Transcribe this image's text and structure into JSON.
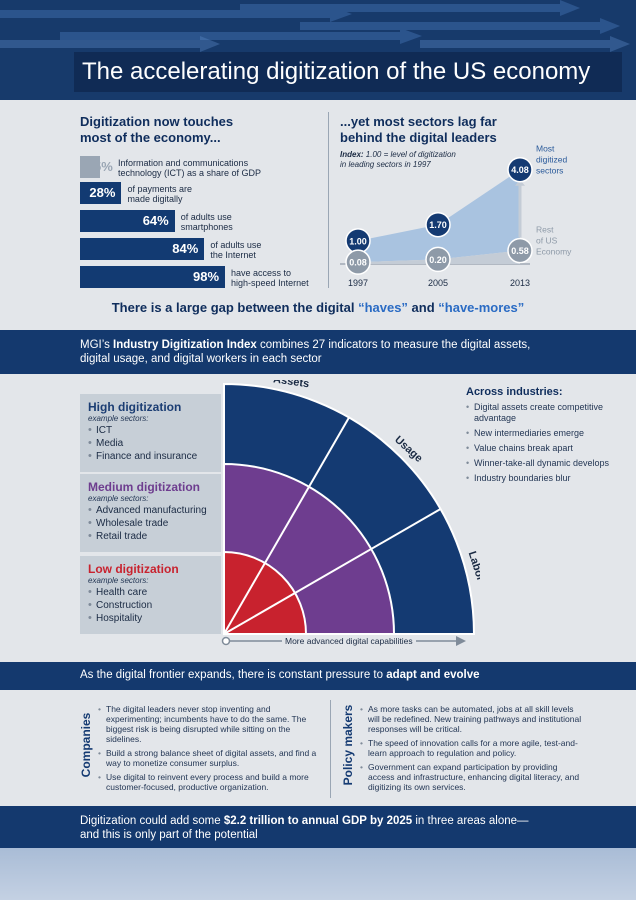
{
  "header": {
    "title": "The accelerating digitization of the US economy",
    "colors": {
      "band": "#173a6b",
      "title_bg": "#102b55"
    }
  },
  "left_panel": {
    "heading_line1": "Digitization now touches",
    "heading_line2": "most of the economy...",
    "items": [
      {
        "value": "5%",
        "pct": 5,
        "desc_line1": "Information and communications",
        "desc_line2": "technology (ICT) as a share of GDP"
      },
      {
        "value": "28%",
        "pct": 28,
        "desc_line1": "of payments are",
        "desc_line2": "made digitally"
      },
      {
        "value": "64%",
        "pct": 64,
        "desc_line1": "of adults use",
        "desc_line2": "smartphones"
      },
      {
        "value": "84%",
        "pct": 84,
        "desc_line1": "of adults use",
        "desc_line2": "the Internet"
      },
      {
        "value": "98%",
        "pct": 98,
        "desc_line1": "have access to",
        "desc_line2": "high-speed Internet"
      }
    ]
  },
  "chart_data": {
    "type": "area",
    "title": "...yet most sectors lag far behind the digital leaders",
    "index_label": "Index:",
    "index_note_line1": "1.00 = level of digitization",
    "index_note_line2": "in leading sectors in 1997",
    "categories": [
      "1997",
      "2005",
      "2013"
    ],
    "series": [
      {
        "name": "Most digitized sectors",
        "name_lines": [
          "Most",
          "digitized",
          "sectors"
        ],
        "values": [
          1.0,
          1.7,
          4.08
        ],
        "labels": [
          "1.00",
          "1.70",
          "4.08"
        ],
        "color": "#143a72"
      },
      {
        "name": "Rest of US Economy",
        "name_lines": [
          "Rest",
          "of US",
          "Economy"
        ],
        "values": [
          0.08,
          0.2,
          0.58
        ],
        "labels": [
          "0.08",
          "0.20",
          "0.58"
        ],
        "color": "#8e9aa8"
      }
    ],
    "ylim": [
      0,
      4.5
    ]
  },
  "gap_line": {
    "pre": "There is a large gap between the digital ",
    "q1": "“haves”",
    "mid": " and ",
    "q2": "“have-mores”"
  },
  "mgi_band": {
    "pre": "MGI’s ",
    "bold": "Industry Digitization Index",
    "rest_line1": " combines 27 indicators to measure the digital assets,",
    "line2": "digital usage, and digital workers in each sector"
  },
  "levels": [
    {
      "heading": "High digitization",
      "color": "#1b3d73",
      "example": "example sectors:",
      "sectors": [
        "ICT",
        "Media",
        "Finance and insurance"
      ]
    },
    {
      "heading": "Medium digitization",
      "color": "#6e3d8f",
      "example": "example sectors:",
      "sectors": [
        "Advanced manufacturing",
        "Wholesale trade",
        "Retail trade"
      ]
    },
    {
      "heading": "Low digitization",
      "color": "#c8222e",
      "example": "example sectors:",
      "sectors": [
        "Health care",
        "Construction",
        "Hospitality"
      ]
    }
  ],
  "axis_labels": {
    "assets": "Assets",
    "usage": "Usage",
    "labor": "Labor"
  },
  "capability_arrow": "More advanced digital capabilities",
  "across": {
    "heading": "Across industries:",
    "items": [
      "Digital assets create competitive advantage",
      "New intermediaries emerge",
      "Value chains break apart",
      "Winner-take-all dynamic develops",
      "Industry boundaries blur"
    ]
  },
  "frontier_band": {
    "pre": "As the digital frontier expands, there is constant pressure to ",
    "bold": "adapt and evolve"
  },
  "companies": {
    "label": "Companies",
    "items": [
      "The digital leaders never stop inventing and experimenting; incumbents have to do the same. The biggest risk is being disrupted while sitting on the sidelines.",
      "Build a strong balance sheet of digital assets, and find a way to monetize consumer surplus.",
      "Use digital to reinvent every process and build a more customer-focused, productive organization."
    ]
  },
  "policy": {
    "label": "Policy makers",
    "items": [
      "As more tasks can be automated, jobs at all skill levels will be redefined. New training pathways and institutional responses will be critical.",
      "The speed of innovation calls for a more agile, test-and-learn approach to regulation and policy.",
      "Government can expand participation by providing access and infrastructure, enhancing digital literacy, and digitizing its own services."
    ]
  },
  "bottom_band": {
    "pre": "Digitization could add some ",
    "bold": "$2.2 trillion to annual GDP by 2025",
    "rest": " in three areas alone—",
    "line2": "and this is only part of the potential"
  }
}
